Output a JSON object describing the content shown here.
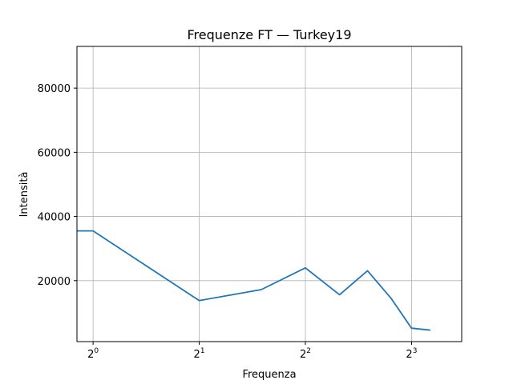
{
  "chart_data": {
    "type": "line",
    "title": "Frequenze FT — Turkey19",
    "xlabel": "Frequenza",
    "ylabel": "Intensità",
    "x_scale": "log2",
    "xlim": [
      0.9,
      11.1
    ],
    "ylim": [
      1000,
      93000
    ],
    "x_ticks": [
      {
        "value": 1,
        "base": "2",
        "exp": "0"
      },
      {
        "value": 2,
        "base": "2",
        "exp": "1"
      },
      {
        "value": 4,
        "base": "2",
        "exp": "2"
      },
      {
        "value": 8,
        "base": "2",
        "exp": "3"
      }
    ],
    "y_ticks": [
      {
        "value": 20000,
        "label": "20000"
      },
      {
        "value": 40000,
        "label": "40000"
      },
      {
        "value": 60000,
        "label": "60000"
      },
      {
        "value": 80000,
        "label": "80000"
      }
    ],
    "grid": true,
    "series": [
      {
        "color": "#1f77b4",
        "x": [
          0.9,
          1.0,
          2.0,
          3.0,
          4.0,
          5.0,
          6.0,
          7.0,
          8.0,
          9.0
        ],
        "y": [
          35500,
          35500,
          13800,
          17200,
          24000,
          15600,
          23100,
          14500,
          5200,
          4600
        ]
      }
    ]
  }
}
